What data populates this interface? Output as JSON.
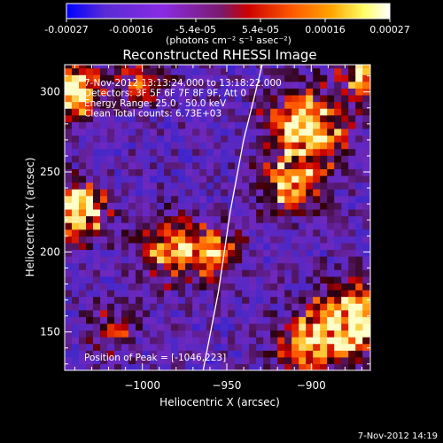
{
  "colorbar": {
    "ticks": [
      "-0.00027",
      "-0.00016",
      "-5.4e-05",
      "5.4e-05",
      "0.00016",
      "0.00027"
    ],
    "unit_label": "(photons cm⁻² s⁻¹ asec⁻²)",
    "colors": [
      "#0000ff",
      "#5a2bd6",
      "#8a2be2",
      "#7a1a6a",
      "#cc0000",
      "#ff5a00",
      "#ffa500",
      "#ffff66",
      "#ffffff"
    ]
  },
  "footer_timestamp": "7-Nov-2012 14:19",
  "chart_data": {
    "type": "heatmap",
    "title": "Reconstructed RHESSI Image",
    "xlabel": "Heliocentric X (arcsec)",
    "ylabel": "Heliocentric Y (arcsec)",
    "xlim": [
      -1046,
      -865
    ],
    "ylim": [
      126,
      317
    ],
    "xticks": [
      -1000,
      -950,
      -900
    ],
    "xtick_labels": [
      "−1000",
      "−950",
      "−900"
    ],
    "yticks": [
      150,
      200,
      250,
      300
    ],
    "ytick_labels": [
      "150",
      "200",
      "250",
      "300"
    ],
    "zlim": [
      -0.00027,
      0.00027
    ],
    "annotations": [
      "7-Nov-2012 13:13:24.000 to 13:18:22.000",
      "Detectors: 3F 5F 6F 7F 8F 9F, Att 0",
      "Energy Range: 25.0 - 50.0 keV",
      "Clean    Total counts: 6.73E+03"
    ],
    "peak_label": "Position of Peak = [-1046,223]",
    "limb_curve": [
      [
        -964,
        126
      ],
      [
        -955,
        175
      ],
      [
        -948,
        225
      ],
      [
        -940,
        270
      ],
      [
        -929,
        317
      ]
    ],
    "grid": false,
    "legend": "none",
    "image_description": "Noisy dark-purple background with bright orange/yellow source blobs along the left edge (~-1040,300 and ~-1040,225), in the lower-left center (~-980,200), and large bright streaks on the right (~-905,270 and ~-880,150)"
  }
}
